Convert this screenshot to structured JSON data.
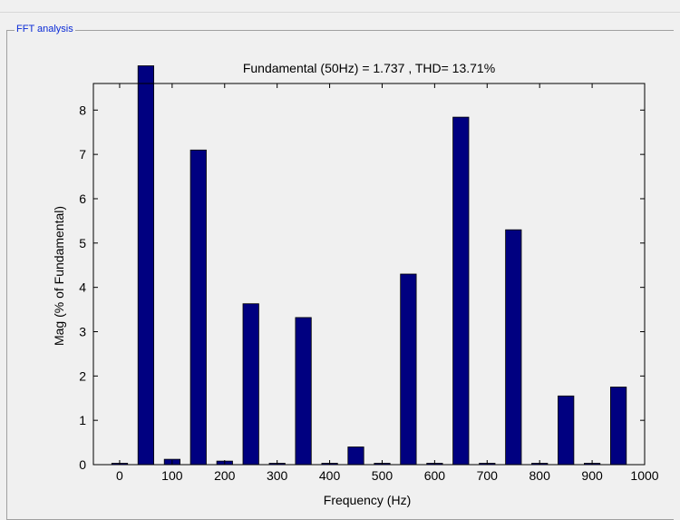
{
  "panel": {
    "title": "FFT analysis"
  },
  "chart_data": {
    "type": "bar",
    "title": "Fundamental (50Hz) = 1.737 , THD= 13.71%",
    "xlabel": "Frequency (Hz)",
    "ylabel": "Mag (% of Fundamental)",
    "xlim": [
      -50,
      1000
    ],
    "ylim": [
      0,
      8.6
    ],
    "xticks": [
      0,
      100,
      200,
      300,
      400,
      500,
      600,
      700,
      800,
      900,
      1000
    ],
    "yticks": [
      0,
      1,
      2,
      3,
      4,
      5,
      6,
      7,
      8
    ],
    "bar_width": 30,
    "bar_color": "#000080",
    "grid": false,
    "x": [
      0,
      50,
      100,
      150,
      200,
      250,
      300,
      350,
      400,
      450,
      500,
      550,
      600,
      650,
      700,
      750,
      800,
      850,
      900,
      950
    ],
    "values": [
      0.03,
      9.0,
      0.12,
      7.1,
      0.08,
      3.63,
      0.03,
      3.32,
      0.03,
      0.4,
      0.03,
      4.3,
      0.03,
      7.84,
      0.03,
      5.3,
      0.03,
      1.55,
      0.03,
      1.75
    ]
  }
}
